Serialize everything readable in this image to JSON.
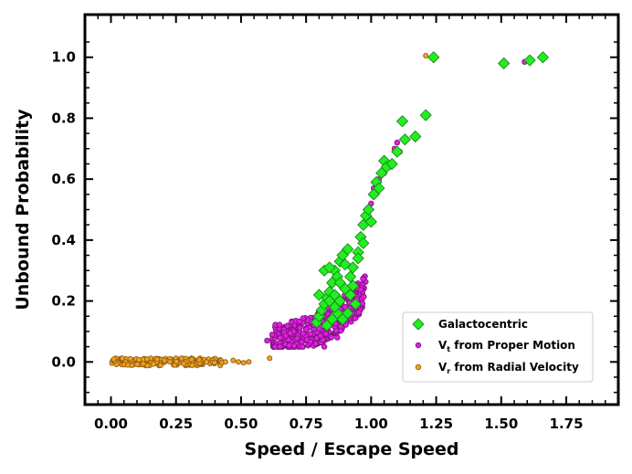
{
  "chart_data": {
    "type": "scatter",
    "xlabel": "Speed / Escape Speed",
    "ylabel": "Unbound Probability",
    "xlim": [
      -0.1,
      1.95
    ],
    "ylim": [
      -0.14,
      1.14
    ],
    "xticks": [
      0.0,
      0.25,
      0.5,
      0.75,
      1.0,
      1.25,
      1.5,
      1.75
    ],
    "xtick_labels": [
      "0.00",
      "0.25",
      "0.50",
      "0.75",
      "1.00",
      "1.25",
      "1.50",
      "1.75"
    ],
    "yticks": [
      0.0,
      0.2,
      0.4,
      0.6,
      0.8,
      1.0
    ],
    "ytick_labels": [
      "0.0",
      "0.2",
      "0.4",
      "0.6",
      "0.8",
      "1.0"
    ],
    "grid": false,
    "legend_position": "lower-right",
    "series": [
      {
        "name": "Galactocentric",
        "marker": "diamond",
        "color": "#22ee22",
        "edgecolor": "#1a8a1a",
        "points": [
          [
            0.79,
            0.13
          ],
          [
            0.8,
            0.15
          ],
          [
            0.81,
            0.17
          ],
          [
            0.82,
            0.19
          ],
          [
            0.83,
            0.21
          ],
          [
            0.84,
            0.23
          ],
          [
            0.85,
            0.26
          ],
          [
            0.86,
            0.3
          ],
          [
            0.87,
            0.28
          ],
          [
            0.88,
            0.33
          ],
          [
            0.89,
            0.35
          ],
          [
            0.9,
            0.32
          ],
          [
            0.91,
            0.37
          ],
          [
            0.92,
            0.28
          ],
          [
            0.93,
            0.25
          ],
          [
            0.94,
            0.19
          ],
          [
            0.89,
            0.14
          ],
          [
            0.87,
            0.16
          ],
          [
            0.85,
            0.14
          ],
          [
            0.83,
            0.12
          ],
          [
            0.84,
            0.2
          ],
          [
            0.86,
            0.22
          ],
          [
            0.88,
            0.26
          ],
          [
            0.9,
            0.24
          ],
          [
            0.91,
            0.16
          ],
          [
            0.93,
            0.31
          ],
          [
            0.95,
            0.36
          ],
          [
            0.96,
            0.41
          ],
          [
            0.97,
            0.45
          ],
          [
            0.98,
            0.48
          ],
          [
            0.99,
            0.5
          ],
          [
            1.0,
            0.46
          ],
          [
            0.97,
            0.39
          ],
          [
            1.01,
            0.55
          ],
          [
            1.02,
            0.59
          ],
          [
            1.03,
            0.57
          ],
          [
            1.04,
            0.62
          ],
          [
            1.05,
            0.66
          ],
          [
            1.06,
            0.64
          ],
          [
            1.08,
            0.65
          ],
          [
            1.1,
            0.69
          ],
          [
            1.12,
            0.79
          ],
          [
            1.13,
            0.73
          ],
          [
            1.17,
            0.74
          ],
          [
            1.21,
            0.81
          ],
          [
            1.24,
            1.0
          ],
          [
            1.51,
            0.98
          ],
          [
            1.61,
            0.99
          ],
          [
            1.66,
            1.0
          ],
          [
            0.82,
            0.3
          ],
          [
            0.84,
            0.31
          ],
          [
            0.86,
            0.18
          ],
          [
            0.88,
            0.2
          ],
          [
            0.8,
            0.22
          ],
          [
            0.95,
            0.34
          ],
          [
            0.92,
            0.22
          ]
        ]
      },
      {
        "name": "Vt from Proper Motion",
        "marker": "circle",
        "color": "#dd22dd",
        "edgecolor": "#7a107a",
        "points": []
      },
      {
        "name": "Vr from Radial Velocity",
        "marker": "circle",
        "color": "#f0a020",
        "edgecolor": "#8a5a10",
        "points": []
      }
    ],
    "legend": [
      {
        "label": "Galactocentric",
        "sub": ""
      },
      {
        "label": "V",
        "sub": "t",
        "rest": " from Proper Motion"
      },
      {
        "label": "V",
        "sub": "r",
        "rest": " from Radial Velocity"
      }
    ]
  }
}
